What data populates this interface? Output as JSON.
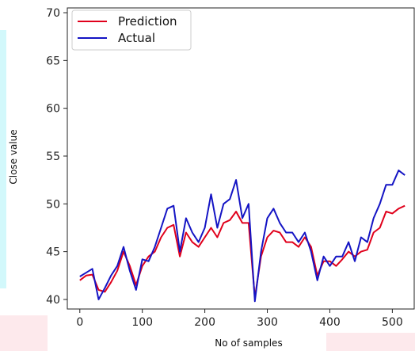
{
  "chart_data": {
    "type": "line",
    "title": "",
    "xlabel": "No of samples",
    "ylabel": "Close value",
    "xlim": [
      -20,
      535
    ],
    "ylim": [
      39,
      70.5
    ],
    "xticks": [
      0,
      100,
      200,
      300,
      400,
      500
    ],
    "yticks": [
      40,
      45,
      50,
      55,
      60,
      65,
      70
    ],
    "grid": false,
    "legend_position": "top-left",
    "series": [
      {
        "name": "Prediction",
        "color": "#e0001b",
        "x": [
          0,
          10,
          20,
          30,
          40,
          50,
          60,
          70,
          80,
          90,
          100,
          110,
          120,
          130,
          140,
          150,
          160,
          170,
          180,
          190,
          200,
          210,
          220,
          230,
          240,
          250,
          260,
          270,
          280,
          290,
          300,
          310,
          320,
          330,
          340,
          350,
          360,
          370,
          380,
          390,
          400,
          410,
          420,
          430,
          440,
          450,
          460,
          470,
          480,
          490,
          500,
          510,
          520
        ],
        "values": [
          42.0,
          42.5,
          42.6,
          41.0,
          40.8,
          41.8,
          43.0,
          45.0,
          43.5,
          41.5,
          43.5,
          44.5,
          45.0,
          46.5,
          47.5,
          47.8,
          44.5,
          47.0,
          46.0,
          45.5,
          46.5,
          47.5,
          46.5,
          48.0,
          48.3,
          49.2,
          48.0,
          48.0,
          40.2,
          44.5,
          46.5,
          47.2,
          47.0,
          46.0,
          46.0,
          45.5,
          46.5,
          45.5,
          42.5,
          44.0,
          44.0,
          43.5,
          44.2,
          45.0,
          44.5,
          45.0,
          45.2,
          47.0,
          47.5,
          49.2,
          49.0,
          49.5,
          49.8
        ]
      },
      {
        "name": "Actual",
        "color": "#1414c4",
        "x": [
          0,
          10,
          20,
          30,
          40,
          50,
          60,
          70,
          80,
          90,
          100,
          110,
          120,
          130,
          140,
          150,
          160,
          170,
          180,
          190,
          200,
          210,
          220,
          230,
          240,
          250,
          260,
          270,
          280,
          290,
          300,
          310,
          320,
          330,
          340,
          350,
          360,
          370,
          380,
          390,
          400,
          410,
          420,
          430,
          440,
          450,
          460,
          470,
          480,
          490,
          500,
          510,
          520
        ],
        "values": [
          42.4,
          42.8,
          43.2,
          40.0,
          41.2,
          42.5,
          43.5,
          45.5,
          43.0,
          41.0,
          44.2,
          44.0,
          45.5,
          47.5,
          49.5,
          49.8,
          45.0,
          48.5,
          47.0,
          46.0,
          47.5,
          51.0,
          47.5,
          50.0,
          50.5,
          52.5,
          48.5,
          50.0,
          39.8,
          45.0,
          48.5,
          49.5,
          48.0,
          47.0,
          47.0,
          46.0,
          47.0,
          45.0,
          42.0,
          44.5,
          43.5,
          44.5,
          44.5,
          46.0,
          44.0,
          46.5,
          46.0,
          48.5,
          50.0,
          52.0,
          52.0,
          53.5,
          53.0
        ]
      }
    ]
  }
}
